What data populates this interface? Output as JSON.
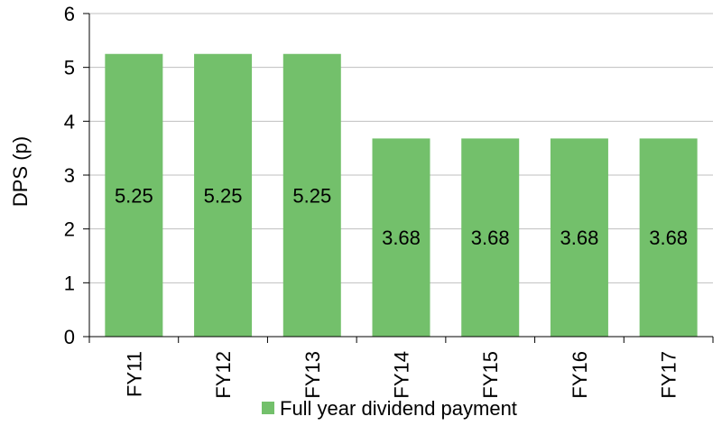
{
  "chart_data": {
    "type": "bar",
    "categories": [
      "FY11",
      "FY12",
      "FY13",
      "FY14",
      "FY15",
      "FY16",
      "FY17"
    ],
    "series": [
      {
        "name": "Full year dividend payment",
        "values": [
          5.25,
          5.25,
          5.25,
          3.68,
          3.68,
          3.68,
          3.68
        ],
        "data_labels": [
          "5.25",
          "5.25",
          "5.25",
          "3.68",
          "3.68",
          "3.68",
          "3.68"
        ]
      }
    ],
    "ylabel": "DPS (p)",
    "xlabel": "",
    "ylim": [
      0,
      6
    ],
    "yticks": [
      "0",
      "1",
      "2",
      "3",
      "4",
      "5",
      "6"
    ],
    "grid": "horizontal",
    "legend_position": "bottom",
    "colors": {
      "bar": "#73c06b",
      "grid": "#bfbfbf",
      "axis": "#000000"
    }
  }
}
